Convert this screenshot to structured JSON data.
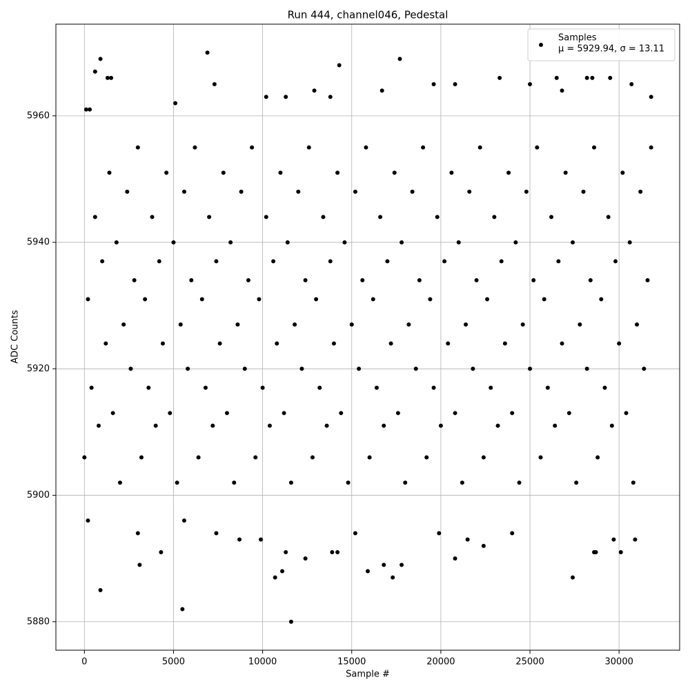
{
  "chart_data": {
    "type": "scatter",
    "title": "Run 444, channel046, Pedestal",
    "x_label": "Sample #",
    "y_label": "ADC Counts",
    "xlim": [
      -1600,
      33400
    ],
    "ylim": [
      5875.5,
      5974.5
    ],
    "xticks": [
      0,
      5000,
      10000,
      15000,
      20000,
      25000,
      30000
    ],
    "yticks": [
      5880,
      5900,
      5920,
      5940,
      5960
    ],
    "grid": true,
    "legend": "upper right",
    "legend_note": "μ = 5929.94, σ = 13.11",
    "x": [
      0,
      200,
      400,
      600,
      800,
      1000,
      1200,
      1400,
      1600,
      1800,
      2000,
      2200,
      2400,
      2600,
      2800,
      3000,
      3200,
      3400,
      3600,
      3800,
      4000,
      4200,
      4400,
      4600,
      4800,
      5000,
      5200,
      5400,
      5600,
      5800,
      6000,
      6200,
      6400,
      6600,
      6800,
      7000,
      7200,
      7400,
      7600,
      7800,
      8000,
      8200,
      8400,
      8600,
      8800,
      9000,
      9200,
      9400,
      9600,
      9800,
      10000,
      10200,
      10400,
      10600,
      10800,
      11000,
      11200,
      11400,
      11600,
      11800,
      12000,
      12200,
      12400,
      12600,
      12800,
      13000,
      13200,
      13400,
      13600,
      13800,
      14000,
      14200,
      14400,
      14600,
      14800,
      15000,
      15200,
      15400,
      15600,
      15800,
      16000,
      16200,
      16400,
      16600,
      16800,
      17000,
      17200,
      17400,
      17600,
      17800,
      18000,
      18200,
      18400,
      18600,
      18800,
      19000,
      19200,
      19400,
      19600,
      19800,
      20000,
      20200,
      20400,
      20600,
      20800,
      21000,
      21200,
      21400,
      21600,
      21800,
      22000,
      22200,
      22400,
      22600,
      22800,
      23000,
      23200,
      23400,
      23600,
      23800,
      24000,
      24200,
      24400,
      24600,
      24800,
      25000,
      25200,
      25400,
      25600,
      25800,
      26000,
      26200,
      26400,
      26600,
      26800,
      27000,
      27200,
      27400,
      27600,
      27800,
      28000,
      28200,
      28400,
      28600,
      28800,
      29000,
      29200,
      29400,
      29600,
      29800,
      30000,
      30200,
      30400,
      30600,
      30800,
      31000,
      31200,
      31400,
      31600,
      31800,
      900,
      5500,
      11600,
      6900,
      900,
      14300,
      17700,
      600,
      1300,
      1500,
      23300,
      26500,
      28200,
      28500,
      29500,
      7300,
      19600,
      20800,
      30700,
      25000,
      12900,
      16700,
      26800,
      100,
      300,
      5100,
      10200,
      11300,
      13800,
      31800,
      3100,
      4300,
      11300,
      11100,
      10700,
      15900,
      17300,
      16800,
      17800,
      20800,
      12400,
      13900,
      14200,
      27400,
      28600,
      28700,
      30100,
      200,
      3000,
      7400,
      9900,
      15200,
      19900,
      21500,
      24000,
      29700,
      30900,
      5600,
      8700,
      22400
    ],
    "series": [
      {
        "name": "Samples",
        "color": "#000000",
        "values": [
          5906,
          5931,
          5917,
          5944,
          5911,
          5937,
          5924,
          5951,
          5913,
          5940,
          5902,
          5927,
          5948,
          5920,
          5934,
          5955,
          5906,
          5931,
          5917,
          5944,
          5911,
          5937,
          5924,
          5951,
          5913,
          5940,
          5902,
          5927,
          5948,
          5920,
          5934,
          5955,
          5906,
          5931,
          5917,
          5944,
          5911,
          5937,
          5924,
          5951,
          5913,
          5940,
          5902,
          5927,
          5948,
          5920,
          5934,
          5955,
          5906,
          5931,
          5917,
          5944,
          5911,
          5937,
          5924,
          5951,
          5913,
          5940,
          5902,
          5927,
          5948,
          5920,
          5934,
          5955,
          5906,
          5931,
          5917,
          5944,
          5911,
          5937,
          5924,
          5951,
          5913,
          5940,
          5902,
          5927,
          5948,
          5920,
          5934,
          5955,
          5906,
          5931,
          5917,
          5944,
          5911,
          5937,
          5924,
          5951,
          5913,
          5940,
          5902,
          5927,
          5948,
          5920,
          5934,
          5955,
          5906,
          5931,
          5917,
          5944,
          5911,
          5937,
          5924,
          5951,
          5913,
          5940,
          5902,
          5927,
          5948,
          5920,
          5934,
          5955,
          5906,
          5931,
          5917,
          5944,
          5911,
          5937,
          5924,
          5951,
          5913,
          5940,
          5902,
          5927,
          5948,
          5920,
          5934,
          5955,
          5906,
          5931,
          5917,
          5944,
          5911,
          5937,
          5924,
          5951,
          5913,
          5940,
          5902,
          5927,
          5948,
          5920,
          5934,
          5955,
          5906,
          5931,
          5917,
          5944,
          5911,
          5937,
          5924,
          5951,
          5913,
          5940,
          5902,
          5927,
          5948,
          5920,
          5934,
          5955,
          5885,
          5882,
          5880,
          5970,
          5969,
          5968,
          5969,
          5967,
          5966,
          5966,
          5966,
          5966,
          5966,
          5966,
          5966,
          5965,
          5965,
          5965,
          5965,
          5965,
          5964,
          5964,
          5964,
          5961,
          5961,
          5962,
          5963,
          5963,
          5963,
          5963,
          5889,
          5891,
          5891,
          5888,
          5887,
          5888,
          5887,
          5889,
          5889,
          5890,
          5890,
          5891,
          5891,
          5887,
          5891,
          5891,
          5891,
          5896,
          5894,
          5894,
          5893,
          5894,
          5894,
          5893,
          5894,
          5893,
          5893,
          5896,
          5893,
          5892
        ]
      }
    ]
  }
}
